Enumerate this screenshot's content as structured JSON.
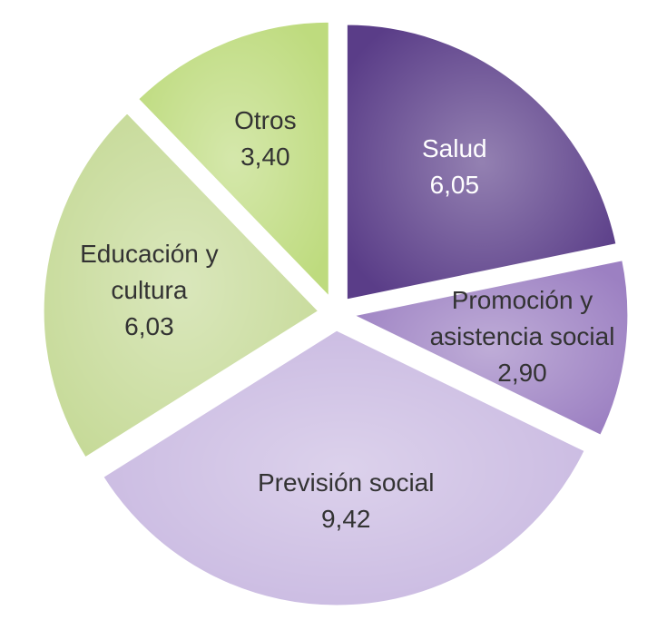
{
  "chart_data": {
    "type": "pie",
    "categories": [
      "Salud",
      "Promoción y asistencia social",
      "Previsión social",
      "Educación y cultura",
      "Otros"
    ],
    "values": [
      6.05,
      2.9,
      9.42,
      6.03,
      3.4
    ],
    "value_labels": [
      "6,05",
      "2,90",
      "9,42",
      "6,03",
      "3,40"
    ],
    "colors": [
      "#5a3d88",
      "#9c80c2",
      "#c9b9e1",
      "#c6da98",
      "#bedb7e"
    ],
    "start_angle": 0,
    "direction": "clockwise",
    "exploded": true
  }
}
